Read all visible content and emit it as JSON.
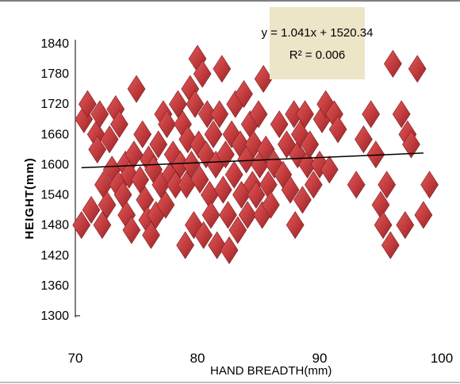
{
  "chart_data": {
    "type": "scatter",
    "title": "",
    "xlabel": "HAND BREADTH(mm)",
    "ylabel": "HEIGHT(mm)",
    "xlim": [
      70,
      100
    ],
    "ylim": [
      1300,
      1840
    ],
    "x_ticks": [
      "70",
      "80",
      "90",
      "100"
    ],
    "y_ticks": [
      "1300",
      "1360",
      "1420",
      "1480",
      "1540",
      "1600",
      "1660",
      "1720",
      "1780",
      "1840"
    ],
    "marker": "diamond",
    "marker_color": "#c0393b",
    "grid": false,
    "trendline": {
      "slope": 1.041,
      "intercept": 1520.34,
      "color": "#000000"
    },
    "annotation": {
      "equation": "y = 1.041x + 1520.34",
      "r_squared": "R² = 0.006",
      "background": "#ede5c8"
    },
    "points": [
      [
        70.5,
        1480
      ],
      [
        70.7,
        1690
      ],
      [
        71.0,
        1720
      ],
      [
        71.3,
        1510
      ],
      [
        71.7,
        1660
      ],
      [
        71.8,
        1630
      ],
      [
        72.0,
        1700
      ],
      [
        72.2,
        1480
      ],
      [
        72.3,
        1560
      ],
      [
        72.6,
        1520
      ],
      [
        72.8,
        1650
      ],
      [
        73.0,
        1590
      ],
      [
        73.3,
        1710
      ],
      [
        73.5,
        1560
      ],
      [
        73.6,
        1680
      ],
      [
        73.9,
        1540
      ],
      [
        74.1,
        1600
      ],
      [
        74.2,
        1500
      ],
      [
        74.4,
        1580
      ],
      [
        74.6,
        1470
      ],
      [
        74.8,
        1620
      ],
      [
        75.0,
        1750
      ],
      [
        75.3,
        1570
      ],
      [
        75.5,
        1660
      ],
      [
        75.7,
        1530
      ],
      [
        75.9,
        1490
      ],
      [
        76.0,
        1610
      ],
      [
        76.2,
        1460
      ],
      [
        76.4,
        1590
      ],
      [
        76.6,
        1500
      ],
      [
        76.8,
        1640
      ],
      [
        77.0,
        1560
      ],
      [
        77.2,
        1700
      ],
      [
        77.4,
        1520
      ],
      [
        77.5,
        1680
      ],
      [
        77.8,
        1580
      ],
      [
        78.0,
        1620
      ],
      [
        78.2,
        1560
      ],
      [
        78.4,
        1720
      ],
      [
        78.6,
        1600
      ],
      [
        78.8,
        1680
      ],
      [
        79.0,
        1440
      ],
      [
        79.1,
        1560
      ],
      [
        79.2,
        1650
      ],
      [
        79.4,
        1750
      ],
      [
        79.5,
        1600
      ],
      [
        79.7,
        1480
      ],
      [
        79.8,
        1720
      ],
      [
        80.0,
        1810
      ],
      [
        80.1,
        1640
      ],
      [
        80.2,
        1570
      ],
      [
        80.4,
        1780
      ],
      [
        80.5,
        1460
      ],
      [
        80.7,
        1620
      ],
      [
        80.8,
        1700
      ],
      [
        81.0,
        1540
      ],
      [
        81.1,
        1500
      ],
      [
        81.3,
        1660
      ],
      [
        81.5,
        1600
      ],
      [
        81.6,
        1440
      ],
      [
        81.8,
        1700
      ],
      [
        82.0,
        1790
      ],
      [
        82.1,
        1550
      ],
      [
        82.3,
        1620
      ],
      [
        82.5,
        1500
      ],
      [
        82.6,
        1430
      ],
      [
        82.8,
        1660
      ],
      [
        83.0,
        1580
      ],
      [
        83.1,
        1720
      ],
      [
        83.3,
        1470
      ],
      [
        83.5,
        1640
      ],
      [
        83.6,
        1540
      ],
      [
        83.8,
        1740
      ],
      [
        84.0,
        1610
      ],
      [
        84.1,
        1500
      ],
      [
        84.3,
        1680
      ],
      [
        84.5,
        1560
      ],
      [
        84.6,
        1640
      ],
      [
        84.8,
        1540
      ],
      [
        85.0,
        1700
      ],
      [
        85.1,
        1600
      ],
      [
        85.3,
        1500
      ],
      [
        85.4,
        1770
      ],
      [
        85.6,
        1630
      ],
      [
        85.8,
        1560
      ],
      [
        86.0,
        1520
      ],
      [
        86.3,
        1600
      ],
      [
        86.7,
        1680
      ],
      [
        87.0,
        1580
      ],
      [
        87.3,
        1640
      ],
      [
        87.6,
        1550
      ],
      [
        87.9,
        1700
      ],
      [
        88.0,
        1480
      ],
      [
        88.2,
        1620
      ],
      [
        88.4,
        1660
      ],
      [
        88.6,
        1530
      ],
      [
        88.8,
        1700
      ],
      [
        89.0,
        1600
      ],
      [
        89.2,
        1640
      ],
      [
        89.5,
        1560
      ],
      [
        90.0,
        1600
      ],
      [
        90.2,
        1690
      ],
      [
        90.5,
        1720
      ],
      [
        90.8,
        1590
      ],
      [
        91.2,
        1700
      ],
      [
        91.5,
        1670
      ],
      [
        93.0,
        1560
      ],
      [
        93.6,
        1650
      ],
      [
        94.2,
        1700
      ],
      [
        94.6,
        1620
      ],
      [
        95.0,
        1520
      ],
      [
        95.2,
        1480
      ],
      [
        95.5,
        1560
      ],
      [
        95.8,
        1440
      ],
      [
        96.0,
        1800
      ],
      [
        96.7,
        1700
      ],
      [
        97.0,
        1480
      ],
      [
        97.2,
        1660
      ],
      [
        97.5,
        1640
      ],
      [
        98.0,
        1790
      ],
      [
        98.5,
        1500
      ],
      [
        99.0,
        1560
      ]
    ]
  }
}
